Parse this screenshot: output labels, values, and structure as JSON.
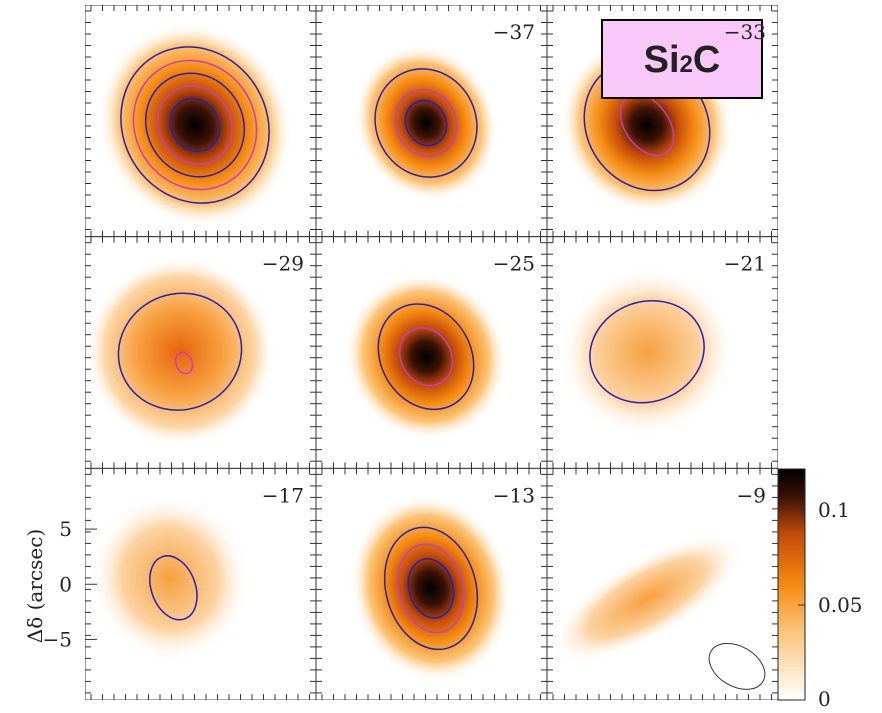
{
  "chart_data": {
    "type": "channel-map",
    "box_label": {
      "main": "Si",
      "sub": "2",
      "tail": "C"
    },
    "panels": [
      null,
      "−37",
      "−33",
      "−29",
      "−25",
      "−21",
      "−17",
      "−13",
      "−9"
    ],
    "ylabel": "Δδ (arcsec)",
    "ylim": [
      -10.5,
      10.5
    ],
    "yticks": [
      {
        "value": 5,
        "label": "5"
      },
      {
        "value": 0,
        "label": "0"
      },
      {
        "value": -5,
        "label": "−5"
      }
    ],
    "colorbar": {
      "lim": [
        0,
        0.1216
      ],
      "ticks": [
        0.1,
        0.05,
        0
      ]
    }
  }
}
